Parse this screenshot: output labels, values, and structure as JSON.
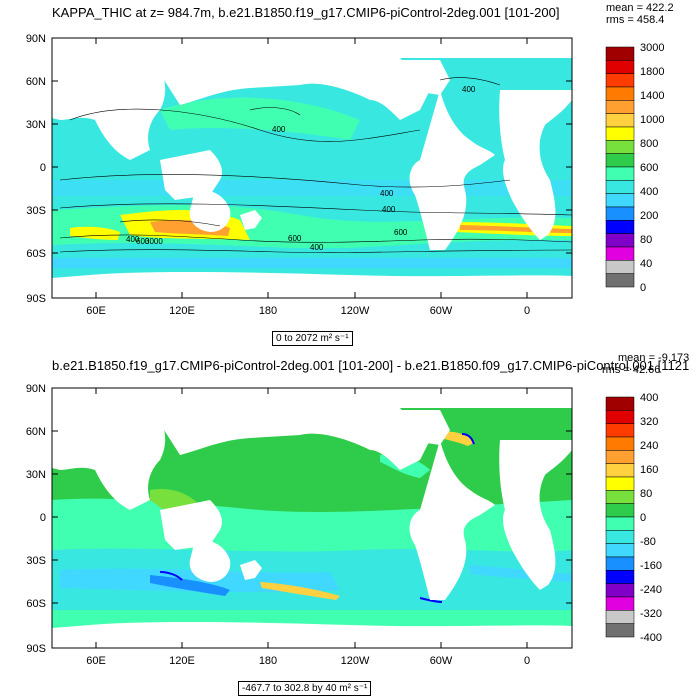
{
  "panel1": {
    "title": "KAPPA_THIC at z= 984.7m, b.e21.B1850.f19_g17.CMIP6-piControl-2deg.001 [101-200]",
    "stats": {
      "mean": "mean = 422.2",
      "rms": "rms = 458.4"
    },
    "range_label": "0 to 2072 m² s⁻¹",
    "lat_labels": [
      "90N",
      "60N",
      "30N",
      "0",
      "30S",
      "60S",
      "90S"
    ],
    "lon_labels": [
      "60E",
      "120E",
      "180",
      "120W",
      "60W",
      "0"
    ],
    "contour_labels": [
      "400",
      "400",
      "400",
      "600",
      "600",
      "400",
      "400",
      "600",
      "400",
      "3000"
    ],
    "colorbar": {
      "labels": [
        "3000",
        "1800",
        "1400",
        "1000",
        "800",
        "600",
        "400",
        "200",
        "80",
        "40",
        "0"
      ],
      "colors": [
        "#a00000",
        "#e00000",
        "#ff3c00",
        "#ff7a00",
        "#ffa030",
        "#ffd040",
        "#ffff00",
        "#78e03c",
        "#2ecc4a",
        "#40ffb0",
        "#38e8e0",
        "#40d8ff",
        "#1890ff",
        "#0000ff",
        "#8000c8",
        "#e000e0",
        "#c8c8c8",
        "#707070"
      ]
    }
  },
  "panel2": {
    "title": "b.e21.B1850.f19_g17.CMIP6-piControl-2deg.001 [101-200] - b.e21.B1850.f09_g17.CMIP6-piControl.001 [1121",
    "stats": {
      "mean": "mean = -9.173",
      "rms": "rms = 42.66"
    },
    "range_label": "-467.7 to 302.8 by 40 m² s⁻¹",
    "lat_labels": [
      "90N",
      "60N",
      "30N",
      "0",
      "30S",
      "60S",
      "90S"
    ],
    "lon_labels": [
      "60E",
      "120E",
      "180",
      "120W",
      "60W",
      "0"
    ],
    "colorbar": {
      "labels": [
        "400",
        "320",
        "240",
        "160",
        "80",
        "0",
        "-80",
        "-160",
        "-240",
        "-320",
        "-400"
      ],
      "colors": [
        "#a00000",
        "#e00000",
        "#ff3c00",
        "#ff7a00",
        "#ffa030",
        "#ffd040",
        "#ffff00",
        "#78e03c",
        "#2ecc4a",
        "#40ffb0",
        "#38e8e0",
        "#40d8ff",
        "#1890ff",
        "#0000ff",
        "#8000c8",
        "#e000e0",
        "#c8c8c8",
        "#707070"
      ]
    }
  }
}
